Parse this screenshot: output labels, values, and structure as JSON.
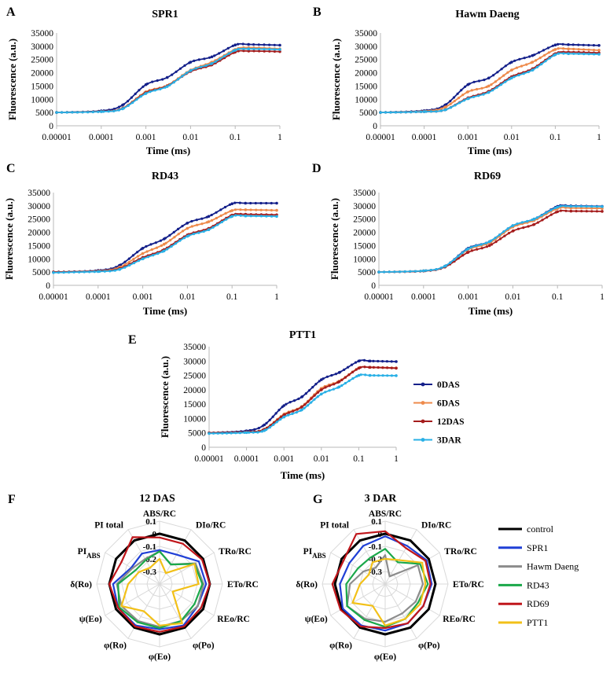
{
  "series_colors": {
    "0DAS": "#14208a",
    "6DAS": "#ee8a4b",
    "12DAS": "#a51c1c",
    "3DAR": "#29b0e6"
  },
  "legend": [
    "0DAS",
    "6DAS",
    "12DAS",
    "3DAR"
  ],
  "chart_data": [
    {
      "type": "line",
      "letter": "A",
      "title": "SPR1",
      "xlabel": "Time (ms)",
      "ylabel": "Fluorescence (a.u.)",
      "x_ticks": [
        "0.00001",
        "0.0001",
        "0.001",
        "0.01",
        "0.1",
        "1"
      ],
      "y_ticks": [
        "0",
        "5000",
        "10000",
        "15000",
        "20000",
        "25000",
        "30000",
        "35000"
      ],
      "ylim": [
        0,
        35000
      ],
      "xscale": "log",
      "xlim": [
        1e-05,
        1
      ],
      "series": [
        {
          "name": "0DAS",
          "x": [
            1e-05,
            0.0001,
            0.0003,
            0.001,
            0.003,
            0.01,
            0.03,
            0.1,
            0.2,
            1
          ],
          "values": [
            5000,
            5600,
            7800,
            15500,
            18200,
            24000,
            26000,
            30500,
            30700,
            30400
          ]
        },
        {
          "name": "6DAS",
          "x": [
            1e-05,
            0.0001,
            0.0003,
            0.001,
            0.003,
            0.01,
            0.03,
            0.1,
            0.2,
            1
          ],
          "values": [
            5000,
            5400,
            6600,
            12800,
            15200,
            21000,
            24000,
            28800,
            29500,
            29000
          ]
        },
        {
          "name": "12DAS",
          "x": [
            1e-05,
            0.0001,
            0.0003,
            0.001,
            0.003,
            0.01,
            0.03,
            0.1,
            0.2,
            1
          ],
          "values": [
            5000,
            5400,
            6500,
            12500,
            15000,
            20500,
            23000,
            27800,
            28200,
            28000
          ]
        },
        {
          "name": "3DAR",
          "x": [
            1e-05,
            0.0001,
            0.0003,
            0.001,
            0.003,
            0.01,
            0.03,
            0.1,
            0.2,
            1
          ],
          "values": [
            5000,
            5300,
            6400,
            12200,
            14800,
            20800,
            23500,
            28500,
            29000,
            28800
          ]
        }
      ]
    },
    {
      "type": "line",
      "letter": "B",
      "title": "Hawm Daeng",
      "xlabel": "Time (ms)",
      "ylabel": "Fluorescence (a.u.)",
      "x_ticks": [
        "0.00001",
        "0.0001",
        "0.001",
        "0.01",
        "0.1",
        "1"
      ],
      "y_ticks": [
        "0",
        "5000",
        "10000",
        "15000",
        "20000",
        "25000",
        "30000",
        "35000"
      ],
      "ylim": [
        0,
        35000
      ],
      "xscale": "log",
      "xlim": [
        1e-05,
        1
      ],
      "series": [
        {
          "name": "0DAS",
          "x": [
            1e-05,
            0.0001,
            0.0003,
            0.001,
            0.003,
            0.01,
            0.03,
            0.1,
            0.2,
            1
          ],
          "values": [
            5000,
            5700,
            7800,
            15500,
            18000,
            24000,
            26500,
            30500,
            30600,
            30300
          ]
        },
        {
          "name": "6DAS",
          "x": [
            1e-05,
            0.0001,
            0.0003,
            0.001,
            0.003,
            0.01,
            0.03,
            0.1,
            0.2,
            1
          ],
          "values": [
            5000,
            5500,
            7000,
            12800,
            15000,
            21000,
            24000,
            28800,
            29000,
            28500
          ]
        },
        {
          "name": "12DAS",
          "x": [
            1e-05,
            0.0001,
            0.0003,
            0.001,
            0.003,
            0.01,
            0.03,
            0.1,
            0.2,
            1
          ],
          "values": [
            5000,
            5300,
            6000,
            10500,
            13000,
            18500,
            21500,
            27200,
            27800,
            27500
          ]
        },
        {
          "name": "3DAR",
          "x": [
            1e-05,
            0.0001,
            0.0003,
            0.001,
            0.003,
            0.01,
            0.03,
            0.1,
            0.2,
            1
          ],
          "values": [
            5000,
            5300,
            6000,
            10200,
            12600,
            18000,
            21000,
            26800,
            27200,
            27000
          ]
        }
      ]
    },
    {
      "type": "line",
      "letter": "C",
      "title": "RD43",
      "xlabel": "Time (ms)",
      "ylabel": "Fluorescence (a.u.)",
      "x_ticks": [
        "0.00001",
        "0.0001",
        "0.001",
        "0.01",
        "0.1",
        "1"
      ],
      "y_ticks": [
        "0",
        "5000",
        "10000",
        "15000",
        "20000",
        "25000",
        "30000",
        "35000"
      ],
      "ylim": [
        0,
        35000
      ],
      "xscale": "log",
      "xlim": [
        1e-05,
        1
      ],
      "series": [
        {
          "name": "0DAS",
          "x": [
            1e-05,
            0.0001,
            0.0003,
            0.001,
            0.003,
            0.01,
            0.03,
            0.1,
            0.2,
            1
          ],
          "values": [
            5000,
            5600,
            7500,
            14000,
            17500,
            23500,
            26000,
            30800,
            31000,
            31000
          ]
        },
        {
          "name": "6DAS",
          "x": [
            1e-05,
            0.0001,
            0.0003,
            0.001,
            0.003,
            0.01,
            0.03,
            0.1,
            0.2,
            1
          ],
          "values": [
            5000,
            5400,
            6800,
            12000,
            15500,
            21500,
            24000,
            28200,
            28500,
            28300
          ]
        },
        {
          "name": "12DAS",
          "x": [
            1e-05,
            0.0001,
            0.0003,
            0.001,
            0.003,
            0.01,
            0.03,
            0.1,
            0.2,
            1
          ],
          "values": [
            5000,
            5300,
            6300,
            10500,
            13500,
            19000,
            21500,
            26500,
            26800,
            26600
          ]
        },
        {
          "name": "3DAR",
          "x": [
            1e-05,
            0.0001,
            0.0003,
            0.001,
            0.003,
            0.01,
            0.03,
            0.1,
            0.2,
            1
          ],
          "values": [
            4800,
            5200,
            6000,
            10000,
            13000,
            18500,
            21000,
            26000,
            26200,
            26000
          ]
        }
      ]
    },
    {
      "type": "line",
      "letter": "D",
      "title": "RD69",
      "xlabel": "Time (ms)",
      "ylabel": "Fluorescence (a.u.)",
      "x_ticks": [
        "0.00001",
        "0.0001",
        "0.001",
        "0.01",
        "0.1",
        "1"
      ],
      "y_ticks": [
        "0",
        "5000",
        "10000",
        "15000",
        "20000",
        "25000",
        "30000",
        "35000"
      ],
      "ylim": [
        0,
        35000
      ],
      "xscale": "log",
      "xlim": [
        1e-05,
        1
      ],
      "series": [
        {
          "name": "0DAS",
          "x": [
            1e-05,
            0.0001,
            0.0003,
            0.001,
            0.003,
            0.01,
            0.03,
            0.1,
            0.2,
            1
          ],
          "values": [
            5000,
            5500,
            7200,
            14000,
            16500,
            22500,
            25000,
            29800,
            30000,
            29800
          ]
        },
        {
          "name": "6DAS",
          "x": [
            1e-05,
            0.0001,
            0.0003,
            0.001,
            0.003,
            0.01,
            0.03,
            0.1,
            0.2,
            1
          ],
          "values": [
            5000,
            5500,
            7100,
            13500,
            16000,
            22000,
            24500,
            29000,
            29200,
            29000
          ]
        },
        {
          "name": "12DAS",
          "x": [
            1e-05,
            0.0001,
            0.0003,
            0.001,
            0.003,
            0.01,
            0.03,
            0.1,
            0.2,
            1
          ],
          "values": [
            5000,
            5400,
            6900,
            12500,
            15000,
            20500,
            23000,
            27800,
            28000,
            27900
          ]
        },
        {
          "name": "3DAR",
          "x": [
            1e-05,
            0.0001,
            0.0003,
            0.001,
            0.003,
            0.01,
            0.03,
            0.1,
            0.2,
            1
          ],
          "values": [
            5000,
            5500,
            7200,
            13800,
            16500,
            22500,
            25000,
            29500,
            29800,
            29700
          ]
        }
      ]
    },
    {
      "type": "line",
      "letter": "E",
      "title": "PTT1",
      "xlabel": "Time (ms)",
      "ylabel": "Fluorescence (a.u.)",
      "x_ticks": [
        "0.00001",
        "0.0001",
        "0.001",
        "0.01",
        "0.1",
        "1"
      ],
      "y_ticks": [
        "0",
        "5000",
        "10000",
        "15000",
        "20000",
        "25000",
        "30000",
        "35000"
      ],
      "ylim": [
        0,
        35000
      ],
      "xscale": "log",
      "xlim": [
        1e-05,
        1
      ],
      "series": [
        {
          "name": "0DAS",
          "x": [
            1e-05,
            0.0001,
            0.0003,
            0.001,
            0.003,
            0.01,
            0.03,
            0.1,
            0.2,
            1
          ],
          "values": [
            5000,
            5700,
            7800,
            14500,
            17500,
            23500,
            26000,
            30000,
            30000,
            29800
          ]
        },
        {
          "name": "6DAS",
          "x": [
            1e-05,
            0.0001,
            0.0003,
            0.001,
            0.003,
            0.01,
            0.03,
            0.1,
            0.2,
            1
          ],
          "values": [
            5000,
            5300,
            6300,
            11500,
            14200,
            20500,
            23000,
            27600,
            27800,
            27600
          ]
        },
        {
          "name": "12DAS",
          "x": [
            1e-05,
            0.0001,
            0.0003,
            0.001,
            0.003,
            0.01,
            0.03,
            0.1,
            0.2,
            1
          ],
          "values": [
            5000,
            5300,
            6200,
            11200,
            14000,
            20000,
            22800,
            27500,
            27800,
            27500
          ]
        },
        {
          "name": "3DAR",
          "x": [
            1e-05,
            0.0001,
            0.0003,
            0.001,
            0.003,
            0.01,
            0.03,
            0.1,
            0.2,
            1
          ],
          "values": [
            4800,
            5100,
            5800,
            10500,
            13000,
            18500,
            21000,
            25000,
            25000,
            24900
          ]
        }
      ]
    }
  ],
  "radar_axes": [
    "ABS/RC",
    "DIo/RC",
    "TRo/RC",
    "ETo/RC",
    "REo/RC",
    "φ(Po)",
    "φ(Eo)",
    "φ(Ro)",
    "ψ(Eo)",
    "δ(Ro)",
    "PI_ABS",
    "PI total"
  ],
  "radar_ticks": [
    "0.1",
    "0",
    "-0.1",
    "-0.2",
    "-0.3"
  ],
  "radar_range": [
    -0.4,
    0.1
  ],
  "radar_series_colors": {
    "control": "#000000",
    "SPR1": "#1f3fd6",
    "Hawm Daeng": "#8c8c8c",
    "RD43": "#1aa84a",
    "RD69": "#c0161b",
    "PTT1": "#f2c018"
  },
  "radar_legend": [
    "control",
    "SPR1",
    "Hawm Daeng",
    "RD43",
    "RD69",
    "PTT1"
  ],
  "radar_charts": [
    {
      "letter": "F",
      "title": "12 DAS",
      "series": [
        {
          "name": "control",
          "values": [
            0,
            0,
            0,
            0,
            0,
            0,
            0,
            0,
            0,
            0,
            0,
            0
          ]
        },
        {
          "name": "SPR1",
          "values": [
            -0.13,
            -0.13,
            -0.04,
            -0.03,
            -0.05,
            -0.02,
            -0.04,
            -0.02,
            -0.02,
            -0.03,
            -0.14,
            -0.12
          ]
        },
        {
          "name": "Hawm Daeng",
          "values": [
            -0.14,
            -0.22,
            -0.07,
            -0.05,
            -0.05,
            -0.06,
            -0.06,
            -0.06,
            -0.05,
            -0.06,
            -0.15,
            -0.17
          ]
        },
        {
          "name": "RD43",
          "values": [
            -0.14,
            -0.22,
            -0.08,
            -0.06,
            -0.08,
            -0.06,
            -0.05,
            -0.05,
            -0.03,
            -0.07,
            -0.18,
            -0.18
          ]
        },
        {
          "name": "RD69",
          "values": [
            -0.03,
            -0.03,
            -0.01,
            0,
            -0.02,
            -0.01,
            -0.02,
            -0.01,
            -0.02,
            0,
            -0.05,
            0.03
          ]
        },
        {
          "name": "PTT1",
          "values": [
            -0.2,
            -0.3,
            -0.08,
            -0.09,
            -0.28,
            -0.04,
            -0.07,
            -0.15,
            -0.05,
            -0.15,
            -0.21,
            -0.25
          ]
        }
      ]
    },
    {
      "letter": "G",
      "title": "3 DAR",
      "series": [
        {
          "name": "control",
          "values": [
            0,
            0,
            0,
            0,
            0,
            0,
            0,
            0,
            0,
            0,
            0,
            0
          ]
        },
        {
          "name": "SPR1",
          "values": [
            -0.02,
            -0.05,
            -0.02,
            -0.03,
            -0.05,
            -0.04,
            -0.03,
            -0.02,
            -0.01,
            -0.04,
            -0.07,
            -0.05
          ]
        },
        {
          "name": "Hawm Daeng",
          "values": [
            -0.17,
            -0.33,
            -0.1,
            -0.1,
            -0.12,
            -0.13,
            -0.1,
            -0.08,
            -0.05,
            -0.12,
            -0.2,
            -0.25
          ]
        },
        {
          "name": "RD43",
          "values": [
            -0.12,
            -0.2,
            -0.08,
            -0.06,
            -0.1,
            -0.08,
            -0.06,
            -0.07,
            -0.05,
            -0.09,
            -0.15,
            -0.16
          ]
        },
        {
          "name": "RD69",
          "values": [
            0.02,
            -0.07,
            -0.03,
            -0.04,
            -0.05,
            -0.04,
            -0.05,
            -0.01,
            0.01,
            0.02,
            -0.02,
            0.06
          ]
        },
        {
          "name": "PTT1",
          "values": [
            -0.2,
            -0.18,
            -0.06,
            -0.08,
            -0.08,
            -0.08,
            -0.07,
            -0.2,
            -0.1,
            -0.2,
            -0.25,
            -0.2
          ]
        }
      ]
    }
  ]
}
